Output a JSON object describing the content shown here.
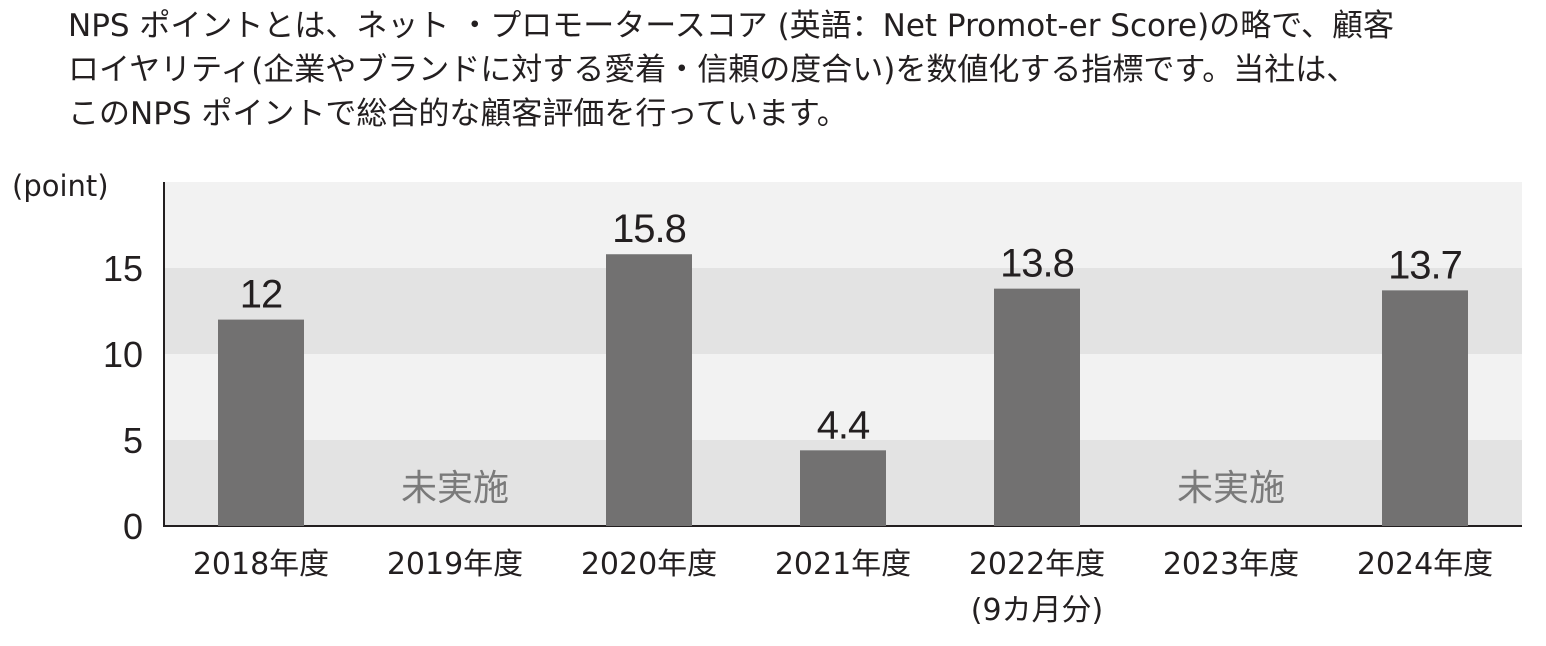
{
  "intro": {
    "lines": [
      "NPS ポイントとは、ネット ・プロモータースコア (英語：Net Promot-er Score)の略で、顧客",
      "ロイヤリティ(企業やブランドに対する愛着・信頼の度合い)を数値化する指標です。当社は、",
      "このNPS ポイントで総合的な顧客評価を行っています。"
    ]
  },
  "chart_data": {
    "type": "bar",
    "unit_label": "(point)",
    "categories": [
      "2018年度",
      "2019年度",
      "2020年度",
      "2021年度",
      "2022年度",
      "2023年度",
      "2024年度"
    ],
    "category_sublabels": [
      "",
      "",
      "",
      "",
      "(9カ月分)",
      "",
      ""
    ],
    "values": [
      12,
      null,
      15.8,
      4.4,
      13.8,
      null,
      13.7
    ],
    "value_labels": [
      "12",
      "",
      "15.8",
      "4.4",
      "13.8",
      "",
      "13.7"
    ],
    "not_conducted_label": "未実施",
    "yticks": [
      0,
      5,
      10,
      15
    ],
    "ylim": [
      0,
      20
    ],
    "bar_color": "#727171",
    "band_colors": [
      "#e3e3e3",
      "#f2f2f2"
    ],
    "grid": false
  }
}
